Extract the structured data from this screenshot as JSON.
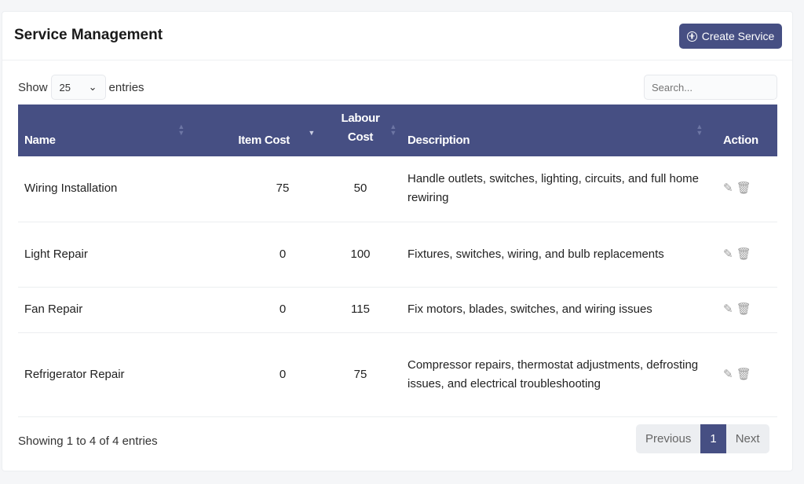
{
  "header": {
    "title": "Service Management",
    "create_label": "Create Service"
  },
  "controls": {
    "show_label": "Show",
    "page_size": "25",
    "entries_label": "entries",
    "search_placeholder": "Search..."
  },
  "table": {
    "columns": [
      "Name",
      "Item Cost",
      "Labour Cost",
      "Description",
      "Action"
    ],
    "rows": [
      {
        "name": "Wiring Installation",
        "item_cost": "75",
        "labour_cost": "50",
        "description": "Handle outlets, switches, lighting, circuits, and full home rewiring"
      },
      {
        "name": "Light Repair",
        "item_cost": "0",
        "labour_cost": "100",
        "description": "Fixtures, switches, wiring, and bulb replacements"
      },
      {
        "name": "Fan Repair",
        "item_cost": "0",
        "labour_cost": "115",
        "description": "Fix motors, blades, switches, and wiring issues"
      },
      {
        "name": "Refrigerator Repair",
        "item_cost": "0",
        "labour_cost": "75",
        "description": "Compressor repairs, thermostat adjustments, defrosting issues, and electrical troubleshooting"
      }
    ]
  },
  "footer": {
    "info": "Showing 1 to 4 of 4 entries",
    "previous": "Previous",
    "page": "1",
    "next": "Next"
  },
  "colors": {
    "accent": "#464f83"
  }
}
